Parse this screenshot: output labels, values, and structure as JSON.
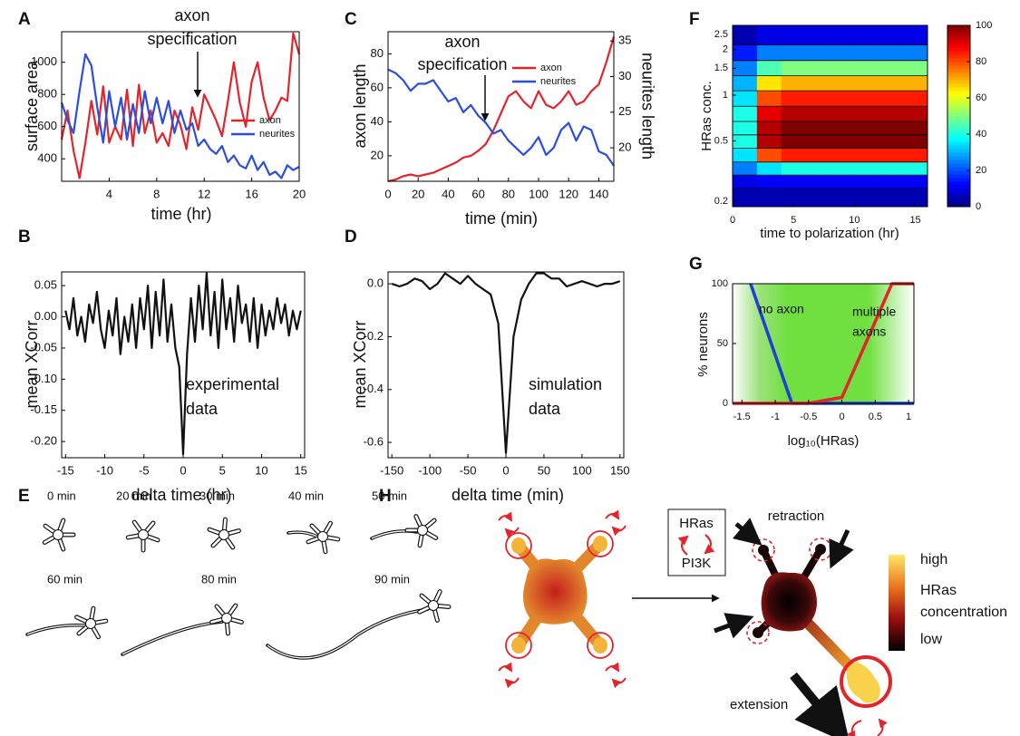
{
  "panel_letters": [
    "A",
    "B",
    "C",
    "D",
    "E",
    "F",
    "G",
    "H"
  ],
  "chart_data": [
    {
      "type": "line",
      "xlabel": "time (hr)",
      "ylabel": "surface area",
      "annotation": [
        "axon",
        "specification"
      ],
      "x": [
        0,
        0.5,
        1,
        1.5,
        2,
        2.5,
        3,
        3.5,
        4,
        4.5,
        5,
        5.5,
        6,
        6.5,
        7,
        7.5,
        8,
        8.5,
        9,
        9.5,
        10,
        10.5,
        11,
        11.5,
        12,
        12.5,
        13,
        13.5,
        14,
        14.5,
        15,
        15.5,
        16,
        16.5,
        17,
        17.5,
        18,
        18.5,
        19,
        19.5,
        20
      ],
      "series": [
        {
          "name": "axon",
          "color": "#e3242b",
          "values": [
            520,
            700,
            450,
            280,
            500,
            760,
            550,
            850,
            500,
            600,
            520,
            830,
            480,
            860,
            560,
            700,
            500,
            560,
            480,
            700,
            610,
            460,
            720,
            580,
            800,
            720,
            640,
            540,
            760,
            1000,
            750,
            600,
            880,
            1000,
            780,
            640,
            700,
            780,
            760,
            1180,
            1050
          ]
        },
        {
          "name": "neurites",
          "color": "#2b4ee0",
          "values": [
            750,
            640,
            560,
            820,
            1050,
            980,
            720,
            500,
            820,
            600,
            780,
            520,
            740,
            560,
            820,
            620,
            780,
            620,
            760,
            560,
            700,
            580,
            620,
            480,
            520,
            460,
            430,
            480,
            380,
            420,
            360,
            340,
            420,
            330,
            380,
            300,
            320,
            280,
            360,
            330,
            350
          ]
        }
      ],
      "xlim": [
        0,
        20
      ],
      "xticks": [
        4,
        8,
        12,
        16,
        20
      ],
      "ylim": [
        260,
        1190
      ],
      "yticks": [
        400,
        600,
        800,
        1000
      ]
    },
    {
      "type": "line",
      "xlabel": "delta time (hr)",
      "ylabel": "mean XCorr",
      "annotation": [
        "experimental",
        "data"
      ],
      "x": [
        -15,
        -14.5,
        -14,
        -13.5,
        -13,
        -12.5,
        -12,
        -11.5,
        -11,
        -10.5,
        -10,
        -9.5,
        -9,
        -8.5,
        -8,
        -7.5,
        -7,
        -6.5,
        -6,
        -5.5,
        -5,
        -4.5,
        -4,
        -3.5,
        -3,
        -2.5,
        -2,
        -1.5,
        -1,
        -0.5,
        0,
        0.5,
        1,
        1.5,
        2,
        2.5,
        3,
        3.5,
        4,
        4.5,
        5,
        5.5,
        6,
        6.5,
        7,
        7.5,
        8,
        8.5,
        9,
        9.5,
        10,
        10.5,
        11,
        11.5,
        12,
        12.5,
        13,
        13.5,
        14,
        14.5,
        15
      ],
      "series": [
        {
          "color": "#111111",
          "values": [
            0.01,
            -0.02,
            0.03,
            -0.03,
            0,
            -0.04,
            0.02,
            -0.01,
            0.04,
            -0.02,
            -0.05,
            0.01,
            -0.03,
            0.03,
            -0.06,
            0,
            -0.04,
            0.02,
            -0.05,
            0.03,
            -0.02,
            0.05,
            -0.05,
            0.04,
            -0.03,
            0.06,
            -0.04,
            0.02,
            -0.05,
            -0.08,
            -0.22,
            -0.06,
            0.03,
            -0.04,
            0.05,
            -0.02,
            0.07,
            -0.03,
            0.04,
            -0.05,
            0.06,
            -0.02,
            0.03,
            -0.04,
            0.05,
            -0.01,
            0.02,
            -0.04,
            0.03,
            -0.05,
            0.02,
            -0.03,
            0.01,
            -0.02,
            0.03,
            -0.01,
            0.02,
            -0.03,
            0.01,
            -0.02,
            0.01
          ]
        }
      ],
      "xlim": [
        -15.5,
        15.5
      ],
      "xticks": [
        -15,
        -10,
        -5,
        0,
        5,
        10,
        15
      ],
      "ylim": [
        -0.226,
        0.072
      ],
      "yticks": [
        0.05,
        {
          "value": 0,
          "label": "0.00"
        },
        -0.05,
        {
          "value": -0.1,
          "label": "-0.10"
        },
        -0.15,
        {
          "value": -0.2,
          "label": "-0.20"
        }
      ]
    },
    {
      "type": "line",
      "xlabel": "time (min)",
      "ylabel": "axon length",
      "y2label": "neurites length",
      "annotation": [
        "axon",
        "specification"
      ],
      "x": [
        0,
        5,
        10,
        15,
        20,
        25,
        30,
        35,
        40,
        45,
        50,
        55,
        60,
        65,
        70,
        75,
        80,
        85,
        90,
        95,
        100,
        105,
        110,
        115,
        120,
        125,
        130,
        135,
        140,
        145,
        150
      ],
      "series": [
        {
          "name": "axon",
          "color": "#e3242b",
          "values": [
            5,
            6,
            8,
            9,
            8,
            9,
            10,
            12,
            14,
            16,
            19,
            20,
            23,
            27,
            35,
            45,
            55,
            58,
            52,
            48,
            58,
            50,
            48,
            52,
            58,
            50,
            52,
            58,
            62,
            75,
            90
          ]
        },
        {
          "name": "neurites",
          "color": "#2b4ee0",
          "axis": "y2",
          "values": [
            31,
            30.5,
            29.5,
            28,
            29,
            29,
            29.5,
            28,
            26.5,
            27,
            25,
            26,
            24.5,
            23.5,
            22,
            22.5,
            21,
            20,
            19,
            20,
            21.5,
            19,
            20,
            22.5,
            23.5,
            21,
            23,
            22.5,
            19.5,
            19,
            17.5
          ]
        }
      ],
      "xlim": [
        0,
        150
      ],
      "xticks": [
        0,
        20,
        40,
        60,
        80,
        100,
        120,
        140
      ],
      "ylim": [
        5,
        93
      ],
      "yticks": [
        20,
        40,
        60,
        80
      ],
      "y2lim": [
        15.3,
        36.3
      ],
      "y2ticks": [
        20,
        25,
        30,
        35
      ]
    },
    {
      "type": "line",
      "xlabel": "delta time (min)",
      "ylabel": "mean XCorr",
      "annotation": [
        "simulation",
        "data"
      ],
      "x": [
        -150,
        -140,
        -130,
        -120,
        -110,
        -100,
        -90,
        -80,
        -70,
        -60,
        -50,
        -40,
        -30,
        -20,
        -10,
        0,
        10,
        20,
        30,
        40,
        50,
        60,
        70,
        80,
        90,
        100,
        110,
        120,
        130,
        140,
        150
      ],
      "series": [
        {
          "color": "#111111",
          "values": [
            0,
            -0.01,
            0,
            0.02,
            0.01,
            -0.02,
            0,
            0.04,
            0.02,
            0,
            0.03,
            0,
            -0.02,
            -0.04,
            -0.15,
            -0.64,
            -0.2,
            -0.06,
            0,
            0.04,
            0.04,
            0.02,
            0.02,
            -0.01,
            0,
            0.01,
            0,
            -0.01,
            0,
            0,
            0.01
          ]
        }
      ],
      "xlim": [
        -155,
        155
      ],
      "xticks": [
        -150,
        -100,
        -50,
        0,
        50,
        100,
        150
      ],
      "ylim": [
        -0.658,
        0.045
      ],
      "yticks": [
        {
          "value": 0,
          "label": "0.0"
        },
        -0.2,
        -0.4,
        -0.6
      ]
    },
    {
      "type": "heatmap",
      "xlabel": "time to polarization (hr)",
      "ylabel": "HRas conc.",
      "log_y": true,
      "x": [
        1,
        3,
        5,
        7,
        9,
        11,
        13,
        15
      ],
      "y": [
        0.22,
        0.27,
        0.33,
        0.4,
        0.5,
        0.6,
        0.75,
        0.95,
        1.2,
        1.5,
        1.9,
        2.4
      ],
      "z": [
        [
          5,
          5,
          5,
          5,
          5,
          5,
          5,
          5
        ],
        [
          10,
          12,
          12,
          12,
          12,
          12,
          12,
          12
        ],
        [
          25,
          35,
          40,
          40,
          40,
          40,
          40,
          40
        ],
        [
          35,
          80,
          85,
          85,
          85,
          85,
          85,
          85
        ],
        [
          40,
          95,
          100,
          100,
          100,
          100,
          100,
          100
        ],
        [
          40,
          95,
          100,
          100,
          100,
          100,
          100,
          100
        ],
        [
          40,
          90,
          95,
          95,
          95,
          95,
          95,
          95
        ],
        [
          35,
          80,
          85,
          85,
          85,
          85,
          85,
          85
        ],
        [
          30,
          65,
          70,
          70,
          70,
          70,
          70,
          70
        ],
        [
          25,
          45,
          50,
          50,
          50,
          50,
          50,
          50
        ],
        [
          15,
          25,
          25,
          25,
          25,
          25,
          25,
          25
        ],
        [
          5,
          10,
          10,
          10,
          10,
          10,
          10,
          10
        ]
      ],
      "xlim": [
        0,
        16
      ],
      "xticks": [
        0,
        5,
        10,
        15
      ],
      "ylim": [
        0.185,
        2.87
      ],
      "yticks": [
        0.2,
        0.5,
        1,
        1.5,
        2,
        2.5
      ],
      "clim": [
        0,
        100
      ],
      "cticks": [
        0,
        20,
        40,
        60,
        80,
        100
      ]
    },
    {
      "type": "line",
      "xlabel": "log₁₀(HRas)",
      "ylabel": "% neurons",
      "annotation": [
        "no axon",
        "multiple",
        "axons"
      ],
      "series": [
        {
          "color": "#1f3fd6",
          "x": [
            -1.37,
            -0.75,
            1.08
          ],
          "values": [
            100,
            0,
            0
          ]
        },
        {
          "color": "#e3242b",
          "x": [
            -1.64,
            -0.5,
            0,
            0.75,
            1.08
          ],
          "values": [
            0,
            0,
            5,
            100,
            100
          ]
        }
      ],
      "xlim": [
        -1.64,
        1.08
      ],
      "xticks": [
        -1.5,
        -1,
        -0.5,
        0,
        0.5,
        1
      ],
      "ylim": [
        0,
        100
      ],
      "yticks": [
        0,
        50,
        100
      ]
    }
  ],
  "panel_e": {
    "labels": [
      "0 min",
      "20 min",
      "30 min",
      "40 min",
      "50 min",
      "60 min",
      "80 min",
      "90 min"
    ]
  },
  "panel_h": {
    "box": [
      "HRas",
      "PI3K"
    ],
    "retraction": "retraction",
    "extension": "extension",
    "legend": {
      "high": "high",
      "title": [
        "HRas",
        "concentration"
      ],
      "low": "low"
    }
  }
}
